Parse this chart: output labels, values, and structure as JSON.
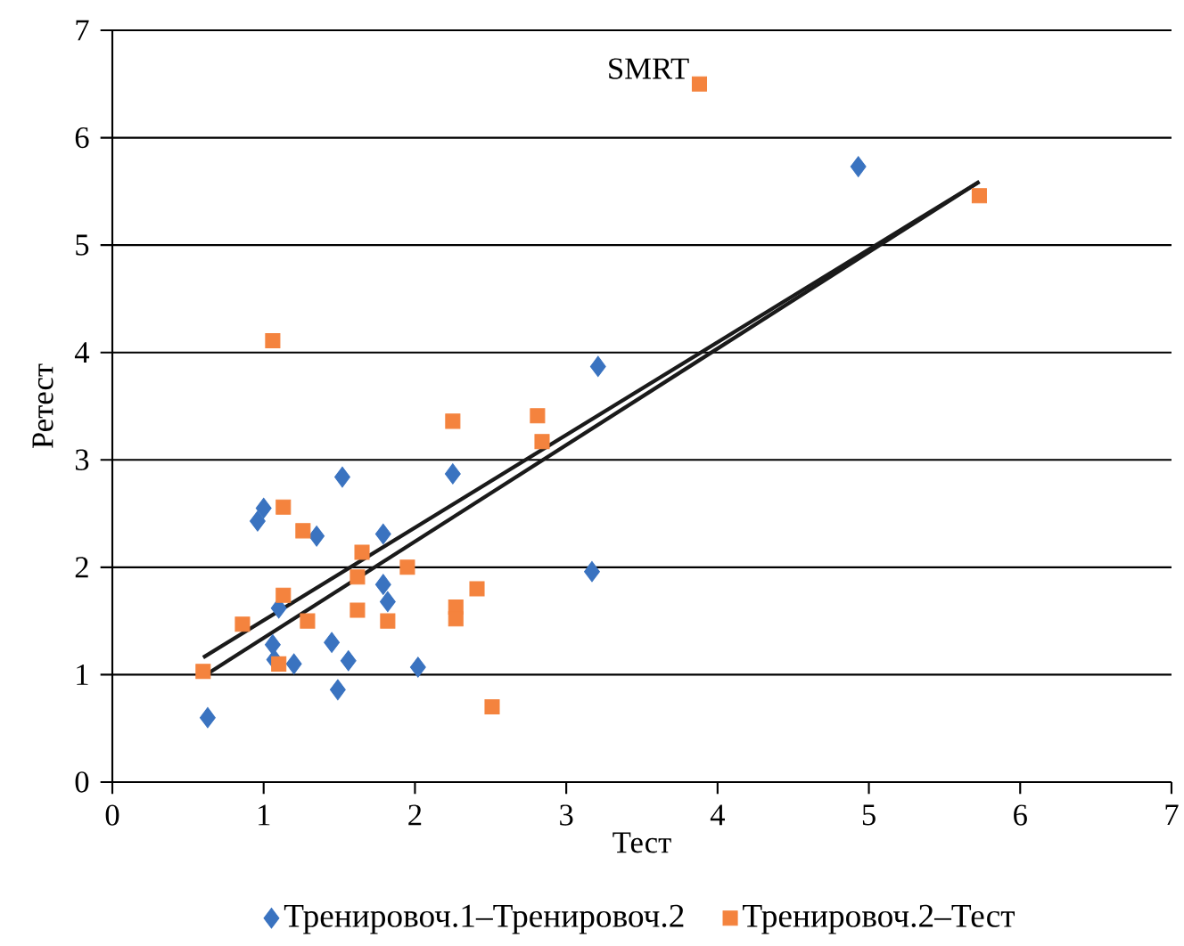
{
  "chart_data": {
    "type": "scatter",
    "title": "SMRT",
    "xlabel": "Тест",
    "ylabel": "Ретест",
    "xlim": [
      0,
      7
    ],
    "ylim": [
      0,
      7
    ],
    "xticks": [
      0,
      1,
      2,
      3,
      4,
      5,
      6,
      7
    ],
    "yticks": [
      0,
      1,
      2,
      3,
      4,
      5,
      6,
      7
    ],
    "grid": "y",
    "legend": "bottom",
    "series": [
      {
        "name": "Тренировоч.1–Тренировоч.2",
        "color": "#3a73c0",
        "marker": "diamond",
        "x": [
          0.63,
          3.21,
          1.52,
          2.25,
          1.0,
          0.96,
          1.35,
          1.79,
          3.17,
          1.79,
          1.82,
          1.1,
          1.06,
          1.45,
          1.07,
          1.2,
          1.56,
          2.02,
          1.49,
          4.93
        ],
        "values": [
          0.6,
          3.87,
          2.84,
          2.87,
          2.55,
          2.43,
          2.29,
          2.31,
          1.96,
          1.84,
          1.68,
          1.62,
          1.28,
          1.3,
          1.14,
          1.1,
          1.13,
          1.07,
          0.86,
          5.73
        ]
      },
      {
        "name": "Тренировоч.2–Тест",
        "color": "#f4833e",
        "marker": "square",
        "x": [
          1.06,
          2.25,
          2.81,
          2.84,
          1.13,
          1.26,
          1.65,
          1.62,
          1.95,
          1.13,
          2.41,
          2.27,
          2.27,
          0.86,
          1.29,
          1.62,
          1.82,
          1.1,
          0.6,
          2.51,
          5.73,
          3.88
        ],
        "values": [
          4.11,
          3.36,
          3.41,
          3.17,
          2.56,
          2.34,
          2.14,
          1.91,
          2.0,
          1.74,
          1.8,
          1.63,
          1.52,
          1.47,
          1.5,
          1.6,
          1.5,
          1.1,
          1.03,
          0.7,
          5.46,
          6.5
        ]
      },
      {
        "type": "line",
        "color": "#1a1a1a",
        "marker": "none",
        "x": [
          0.6,
          5.73
        ],
        "values": [
          1.16,
          5.59
        ]
      },
      {
        "type": "line",
        "color": "#1a1a1a",
        "marker": "none",
        "x": [
          0.63,
          5.73
        ],
        "values": [
          1.01,
          5.59
        ]
      }
    ]
  }
}
